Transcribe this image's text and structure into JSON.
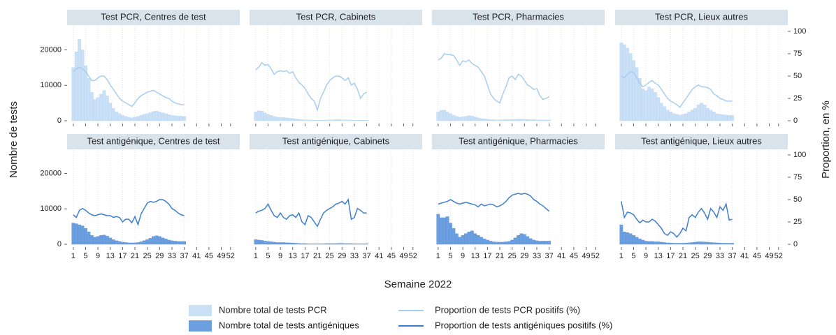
{
  "chart_data": {
    "type": "facet-bar-line",
    "xlabel": "Semaine 2022",
    "ylabel": "Nombre de tests",
    "y2label": "Proportion, en %",
    "xlim": [
      -1,
      55
    ],
    "xticks": [
      1,
      5,
      9,
      13,
      17,
      21,
      25,
      29,
      33,
      37,
      41,
      45,
      49,
      52
    ],
    "ylim": [
      0,
      27000
    ],
    "yticks": [
      0,
      10000,
      20000
    ],
    "y2lim": [
      0,
      107
    ],
    "y2ticks": [
      0,
      25,
      50,
      75,
      100
    ],
    "grid": true,
    "series": [
      {
        "name": "Nombre total de tests PCR",
        "color": "#c9e0f6"
      },
      {
        "name": "Nombre total de tests antigéniques",
        "color": "#6b9fe0"
      },
      {
        "name": "Proportion de tests PCR positifs (%)",
        "color": "#a8cdef"
      },
      {
        "name": "Proportion de tests antigéniques positifs (%)",
        "color": "#3f7fce"
      }
    ],
    "x": [
      1,
      2,
      3,
      4,
      5,
      6,
      7,
      8,
      9,
      10,
      11,
      12,
      13,
      14,
      15,
      16,
      17,
      18,
      19,
      20,
      21,
      22,
      23,
      24,
      25,
      26,
      27,
      28,
      29,
      30,
      31,
      32,
      33,
      34,
      35,
      36,
      37
    ],
    "panels": [
      {
        "title": "Test PCR, Centres de test",
        "counts": [
          15000,
          19500,
          23000,
          20000,
          15500,
          12000,
          8000,
          6000,
          6500,
          7500,
          8500,
          7000,
          5000,
          3500,
          2500,
          2000,
          1500,
          1200,
          1000,
          800,
          1000,
          1200,
          1500,
          1800,
          2000,
          2300,
          2600,
          2700,
          2500,
          2200,
          2000,
          1700,
          1500,
          1400,
          1300,
          1300,
          1200
        ],
        "proportions": [
          55,
          58,
          60,
          58,
          55,
          50,
          45,
          45,
          48,
          50,
          50,
          46,
          40,
          35,
          30,
          25,
          22,
          20,
          18,
          16,
          20,
          25,
          28,
          30,
          32,
          33,
          34,
          32,
          30,
          28,
          26,
          25,
          22,
          20,
          19,
          18,
          18
        ]
      },
      {
        "title": "Test PCR, Cabinets",
        "counts": [
          2500,
          2800,
          2700,
          2200,
          1800,
          1500,
          1200,
          1000,
          900,
          900,
          800,
          700,
          600,
          500,
          400,
          300,
          250,
          200,
          200,
          150,
          150,
          150,
          200,
          200,
          250,
          250,
          300,
          300,
          250,
          250,
          200,
          200,
          150,
          150,
          150,
          150,
          150
        ],
        "proportions": [
          57,
          60,
          65,
          62,
          63,
          58,
          52,
          55,
          56,
          55,
          56,
          53,
          55,
          48,
          43,
          40,
          36,
          30,
          25,
          22,
          12,
          25,
          32,
          40,
          45,
          48,
          50,
          50,
          48,
          45,
          48,
          40,
          42,
          35,
          25,
          30,
          32
        ]
      },
      {
        "title": "Test PCR, Pharmacies",
        "counts": [
          2500,
          2900,
          3000,
          2500,
          2000,
          1500,
          1200,
          1000,
          1100,
          1200,
          1400,
          1300,
          1000,
          800,
          600,
          500,
          400,
          300,
          300,
          250,
          250,
          250,
          300,
          300,
          350,
          400,
          450,
          450,
          400,
          350,
          300,
          300,
          250,
          250,
          200,
          200,
          200
        ],
        "proportions": [
          68,
          70,
          75,
          74,
          74,
          73,
          68,
          62,
          67,
          66,
          68,
          64,
          62,
          60,
          55,
          50,
          40,
          30,
          25,
          22,
          20,
          30,
          38,
          48,
          50,
          46,
          52,
          50,
          45,
          40,
          38,
          35,
          36,
          28,
          24,
          25,
          27
        ]
      },
      {
        "title": "Test PCR, Lieux autres",
        "counts": [
          22000,
          21500,
          20500,
          19000,
          17000,
          15000,
          12000,
          9000,
          8500,
          9500,
          9000,
          8000,
          6500,
          5000,
          4000,
          3000,
          2500,
          2000,
          1800,
          1600,
          1800,
          2000,
          2500,
          3000,
          3500,
          4500,
          5000,
          4500,
          3500,
          3000,
          2500,
          2000,
          1800,
          1700,
          1600,
          1500,
          1500
        ],
        "proportions": [
          50,
          48,
          52,
          55,
          54,
          48,
          42,
          38,
          40,
          43,
          45,
          42,
          40,
          35,
          30,
          25,
          22,
          20,
          18,
          15,
          20,
          25,
          30,
          35,
          38,
          40,
          38,
          38,
          37,
          35,
          30,
          28,
          25,
          24,
          22,
          22,
          22
        ]
      },
      {
        "title": "Test antigénique, Centres de test",
        "counts": [
          6000,
          5800,
          5500,
          5200,
          4500,
          3500,
          2500,
          2000,
          2200,
          2500,
          2600,
          2300,
          1800,
          1300,
          1000,
          800,
          600,
          500,
          400,
          400,
          400,
          500,
          700,
          1000,
          1300,
          1700,
          2200,
          2400,
          2200,
          1800,
          1500,
          1200,
          1000,
          900,
          800,
          800,
          800
        ],
        "proportions": [
          33,
          30,
          38,
          40,
          38,
          35,
          33,
          32,
          33,
          34,
          33,
          32,
          32,
          30,
          31,
          30,
          25,
          28,
          28,
          24,
          31,
          22,
          34,
          40,
          46,
          48,
          47,
          48,
          50,
          50,
          48,
          45,
          40,
          38,
          35,
          33,
          32
        ]
      },
      {
        "title": "Test antigénique, Cabinets",
        "counts": [
          1300,
          1200,
          1100,
          900,
          800,
          700,
          600,
          500,
          500,
          500,
          450,
          400,
          350,
          300,
          250,
          200,
          200,
          150,
          150,
          150,
          150,
          150,
          150,
          200,
          200,
          200,
          200,
          250,
          250,
          200,
          200,
          200,
          150,
          150,
          150,
          150,
          150
        ],
        "proportions": [
          35,
          37,
          38,
          40,
          45,
          38,
          32,
          30,
          35,
          30,
          28,
          32,
          33,
          30,
          35,
          25,
          22,
          32,
          30,
          25,
          20,
          28,
          35,
          38,
          40,
          42,
          45,
          46,
          48,
          45,
          50,
          28,
          30,
          40,
          38,
          35,
          35
        ]
      },
      {
        "title": "Test antigénique, Pharmacies",
        "counts": [
          8500,
          7500,
          7500,
          7800,
          6000,
          4500,
          3000,
          2000,
          2500,
          3000,
          3500,
          3800,
          3000,
          2500,
          2000,
          1500,
          1200,
          900,
          700,
          600,
          600,
          600,
          700,
          800,
          1200,
          1800,
          2500,
          3000,
          2800,
          2200,
          1600,
          1200,
          1000,
          900,
          900,
          900,
          900
        ],
        "proportions": [
          45,
          46,
          47,
          48,
          50,
          48,
          46,
          45,
          46,
          47,
          46,
          45,
          44,
          42,
          45,
          43,
          44,
          45,
          44,
          42,
          43,
          45,
          48,
          52,
          55,
          56,
          57,
          56,
          57,
          56,
          54,
          50,
          48,
          45,
          43,
          40,
          37
        ]
      },
      {
        "title": "Test antigénique, Lieux autres",
        "counts": [
          5500,
          3500,
          3300,
          3000,
          2500,
          2000,
          1500,
          1200,
          900,
          800,
          800,
          700,
          700,
          600,
          500,
          400,
          350,
          300,
          300,
          300,
          300,
          350,
          400,
          500,
          600,
          700,
          700,
          650,
          600,
          500,
          450,
          400,
          350,
          300,
          300,
          300,
          300
        ],
        "proportions": [
          48,
          30,
          36,
          35,
          33,
          28,
          24,
          27,
          25,
          25,
          28,
          26,
          22,
          18,
          12,
          10,
          14,
          12,
          8,
          12,
          18,
          15,
          30,
          33,
          30,
          36,
          40,
          35,
          28,
          40,
          36,
          30,
          42,
          38,
          45,
          27,
          28
        ]
      }
    ]
  }
}
